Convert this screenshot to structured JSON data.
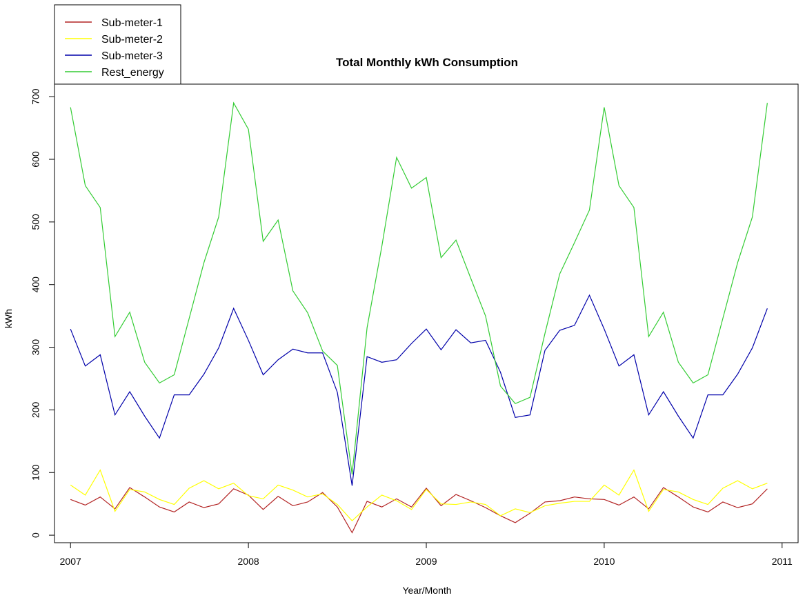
{
  "chart_data": {
    "type": "line",
    "title": "Total Monthly kWh Consumption",
    "xlabel": "Year/Month",
    "ylabel": "kWh",
    "xlim": [
      2006.91,
      2011.09
    ],
    "ylim": [
      -12,
      720
    ],
    "x_ticks": [
      2007,
      2008,
      2009,
      2010,
      2011
    ],
    "y_ticks": [
      0,
      100,
      200,
      300,
      400,
      500,
      600,
      700
    ],
    "grid": false,
    "legend_placement": "top-left",
    "x": [
      2007.0,
      2007.083,
      2007.167,
      2007.25,
      2007.333,
      2007.417,
      2007.5,
      2007.583,
      2007.667,
      2007.75,
      2007.833,
      2007.917,
      2008.0,
      2008.083,
      2008.167,
      2008.25,
      2008.333,
      2008.417,
      2008.5,
      2008.583,
      2008.667,
      2008.75,
      2008.833,
      2008.917,
      2009.0,
      2009.083,
      2009.167,
      2009.25,
      2009.333,
      2009.417,
      2009.5,
      2009.583,
      2009.667,
      2009.75,
      2009.833,
      2009.917,
      2010.0,
      2010.083,
      2010.167,
      2010.25,
      2010.333,
      2010.417,
      2010.5,
      2010.583,
      2010.667,
      2010.75,
      2010.833,
      2010.917
    ],
    "series": [
      {
        "name": "Sub-meter-1",
        "color": "#b22222",
        "values": [
          57,
          48,
          61,
          42,
          76,
          61,
          45,
          37,
          53,
          44,
          50,
          74,
          64,
          41,
          62,
          47,
          53,
          68,
          45,
          4,
          54,
          45,
          58,
          45,
          75,
          47,
          65,
          55,
          44,
          31,
          20,
          35,
          53,
          55,
          61,
          58,
          57,
          48,
          61,
          42,
          76,
          61,
          45,
          37,
          53,
          44,
          50,
          74
        ]
      },
      {
        "name": "Sub-meter-2",
        "color": "#ffff00",
        "values": [
          80,
          64,
          104,
          38,
          73,
          69,
          57,
          49,
          75,
          87,
          74,
          83,
          63,
          58,
          80,
          72,
          61,
          66,
          49,
          23,
          45,
          64,
          55,
          41,
          73,
          50,
          49,
          53,
          49,
          31,
          42,
          36,
          47,
          51,
          54,
          54,
          80,
          64,
          104,
          38,
          73,
          69,
          57,
          49,
          75,
          87,
          74,
          83
        ]
      },
      {
        "name": "Sub-meter-3",
        "color": "#0000aa",
        "values": [
          329,
          270,
          288,
          192,
          229,
          190,
          155,
          224,
          224,
          257,
          299,
          362,
          311,
          256,
          280,
          297,
          291,
          291,
          228,
          79,
          285,
          276,
          280,
          306,
          329,
          296,
          328,
          307,
          311,
          260,
          188,
          192,
          295,
          327,
          335,
          383,
          329,
          270,
          288,
          192,
          229,
          190,
          155,
          224,
          224,
          257,
          299,
          362
        ]
      },
      {
        "name": "Rest_energy",
        "color": "#33cc33",
        "values": [
          683,
          558,
          523,
          317,
          356,
          276,
          243,
          256,
          346,
          435,
          508,
          690,
          648,
          469,
          503,
          390,
          355,
          294,
          271,
          97,
          331,
          461,
          603,
          554,
          571,
          443,
          471,
          410,
          350,
          238,
          210,
          220,
          322,
          417,
          467,
          519,
          683,
          558,
          523,
          317,
          356,
          276,
          243,
          256,
          346,
          435,
          508,
          690
        ]
      }
    ]
  }
}
